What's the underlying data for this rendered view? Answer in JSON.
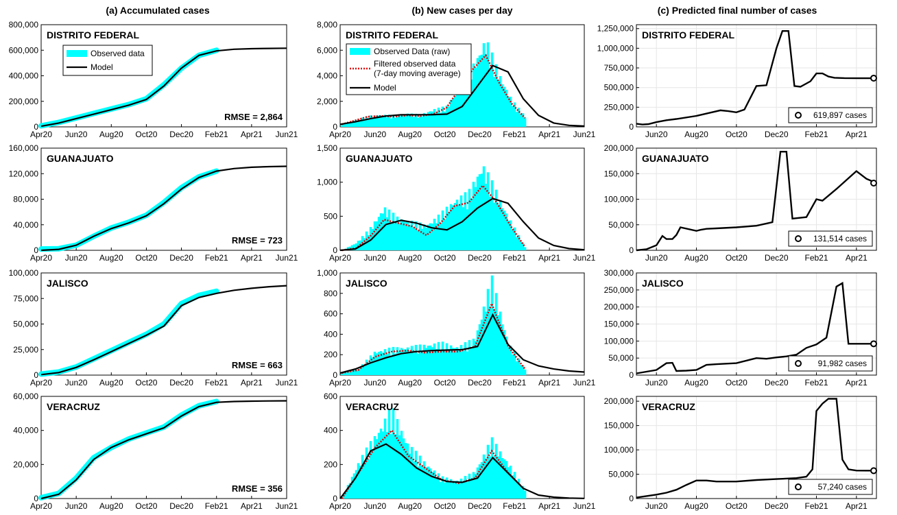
{
  "figure": {
    "columns": [
      {
        "title": "(a) Accumulated cases"
      },
      {
        "title": "(b) New cases per day"
      },
      {
        "title": "(c) Predicted final number of cases"
      }
    ]
  },
  "colors": {
    "observed": "#00ffff",
    "model": "#000000",
    "filtered": "#e00000",
    "grid": "#e6e6e6"
  },
  "legends": {
    "a": [
      "Observed data",
      "Model"
    ],
    "b": [
      "Observed Data (raw)",
      "Filtered observed data",
      "(7-day moving average)",
      "Model"
    ]
  },
  "chart_data": [
    {
      "type": "line",
      "column": "a",
      "state": "DISTRITO FEDERAL",
      "rmse": "RMSE = 2,864",
      "x_ticks": [
        "Apr20",
        "Jun20",
        "Aug20",
        "Oct20",
        "Dec20",
        "Feb21",
        "Apr21",
        "Jun21"
      ],
      "y_ticks": [
        "0",
        "200,000",
        "400,000",
        "600,000",
        "800,000"
      ],
      "ylim": [
        0,
        800000
      ],
      "series": [
        {
          "name": "Observed data",
          "x": [
            0,
            1,
            2,
            3,
            4,
            5,
            6,
            7,
            8,
            9,
            10,
            11
          ],
          "y": [
            8000,
            35000,
            70000,
            105000,
            140000,
            175000,
            220000,
            330000,
            460000,
            560000,
            600000,
            null
          ]
        },
        {
          "name": "Model",
          "x": [
            0,
            1,
            2,
            3,
            4,
            5,
            6,
            7,
            8,
            9,
            10,
            11,
            12,
            13,
            14
          ],
          "y": [
            5000,
            30000,
            65000,
            100000,
            135000,
            170000,
            215000,
            320000,
            460000,
            560000,
            595000,
            608000,
            612000,
            614000,
            616000
          ]
        }
      ]
    },
    {
      "type": "bar+line",
      "column": "b",
      "state": "DISTRITO FEDERAL",
      "x_ticks": [
        "Apr20",
        "Jun20",
        "Aug20",
        "Oct20",
        "Dec20",
        "Feb21",
        "Apr21",
        "Jun21"
      ],
      "y_ticks": [
        "0",
        "2,000",
        "4,000",
        "6,000",
        "8,000"
      ],
      "ylim": [
        0,
        8000
      ],
      "raw": [
        200,
        500,
        800,
        900,
        850,
        1000,
        900,
        1300,
        1500,
        3000,
        4500,
        6500,
        4000,
        2000,
        800
      ],
      "filtered": [
        200,
        500,
        800,
        850,
        800,
        900,
        850,
        1000,
        1500,
        3000,
        4500,
        5600,
        3500,
        1800,
        700
      ],
      "model": [
        200,
        400,
        650,
        850,
        950,
        950,
        950,
        1000,
        1600,
        3200,
        4800,
        4300,
        2200,
        900,
        300,
        120,
        60
      ]
    },
    {
      "type": "line",
      "column": "c",
      "state": "DISTRITO FEDERAL",
      "label": "619,897 cases",
      "x_ticks": [
        "Jun20",
        "Aug20",
        "Oct20",
        "Dec20",
        "Feb21",
        "Apr21"
      ],
      "y_ticks": [
        "0",
        "250,000",
        "500,000",
        "750,000",
        "1,000,000",
        "1,250,000"
      ],
      "ylim": [
        0,
        1300000
      ],
      "final": 619897,
      "x": [
        0,
        0.3,
        0.6,
        1,
        1.5,
        2,
        3,
        3.6,
        4.2,
        4.6,
        5,
        5.4,
        6,
        6.5,
        7,
        7.3,
        7.6,
        7.9,
        8.2,
        8.7,
        9,
        9.3,
        9.6,
        9.9,
        10.4,
        11,
        12
      ],
      "y": [
        40000,
        30000,
        35000,
        60000,
        85000,
        100000,
        140000,
        175000,
        210000,
        200000,
        185000,
        220000,
        520000,
        530000,
        1000000,
        1220000,
        1220000,
        520000,
        510000,
        580000,
        680000,
        680000,
        640000,
        625000,
        620000,
        619000,
        619897
      ]
    },
    {
      "type": "line",
      "column": "a",
      "state": "GUANAJUATO",
      "rmse": "RMSE = 723",
      "x_ticks": [
        "Apr20",
        "Jun20",
        "Aug20",
        "Oct20",
        "Dec20",
        "Feb21",
        "Apr21",
        "Jun21"
      ],
      "y_ticks": [
        "0",
        "40,000",
        "80,000",
        "120,000",
        "160,000"
      ],
      "ylim": [
        0,
        160000
      ],
      "series": [
        {
          "name": "Observed data",
          "x": [
            0,
            1,
            2,
            3,
            4,
            5,
            6,
            7,
            8,
            9,
            10
          ],
          "y": [
            2000,
            2500,
            8000,
            22000,
            35000,
            44000,
            55000,
            75000,
            98000,
            115000,
            124000
          ]
        },
        {
          "name": "Model",
          "x": [
            0,
            1,
            2,
            3,
            4,
            5,
            6,
            7,
            8,
            9,
            10,
            11,
            12,
            13,
            14
          ],
          "y": [
            0,
            1500,
            8000,
            22000,
            34000,
            43000,
            54000,
            73000,
            96000,
            114000,
            124000,
            128000,
            130000,
            131000,
            131500
          ]
        }
      ]
    },
    {
      "type": "bar+line",
      "column": "b",
      "state": "GUANAJUATO",
      "x_ticks": [
        "Apr20",
        "Jun20",
        "Aug20",
        "Oct20",
        "Dec20",
        "Feb21",
        "Apr21",
        "Jun21"
      ],
      "y_ticks": [
        "0",
        "500",
        "1,000",
        "1,500"
      ],
      "ylim": [
        0,
        1500
      ],
      "raw": [
        0,
        100,
        300,
        600,
        450,
        400,
        350,
        500,
        700,
        800,
        1200,
        800,
        400,
        50
      ],
      "filtered": [
        0,
        30,
        200,
        450,
        400,
        350,
        220,
        400,
        650,
        700,
        950,
        700,
        350,
        50
      ],
      "model": [
        0,
        20,
        150,
        380,
        440,
        400,
        330,
        300,
        420,
        620,
        760,
        690,
        420,
        180,
        70,
        25,
        8
      ]
    },
    {
      "type": "line",
      "column": "c",
      "state": "GUANAJUATO",
      "label": "131,514 cases",
      "x_ticks": [
        "Jun20",
        "Aug20",
        "Oct20",
        "Dec20",
        "Feb21",
        "Apr21"
      ],
      "y_ticks": [
        "0",
        "50,000",
        "100,000",
        "150,000",
        "200,000"
      ],
      "ylim": [
        0,
        200000
      ],
      "final": 131514,
      "x": [
        0,
        0.5,
        1,
        1.3,
        1.5,
        1.8,
        2,
        2.2,
        3,
        3.2,
        3.5,
        4,
        5,
        6,
        6.8,
        7.2,
        7.5,
        7.8,
        8.5,
        9,
        9.3,
        10,
        11,
        11.5,
        12
      ],
      "y": [
        0,
        2000,
        10000,
        28000,
        22000,
        22000,
        30000,
        45000,
        38000,
        40000,
        42000,
        43000,
        45000,
        48000,
        55000,
        193000,
        193000,
        62000,
        65000,
        100000,
        97000,
        120000,
        155000,
        140000,
        131514
      ]
    },
    {
      "type": "line",
      "column": "a",
      "state": "JALISCO",
      "rmse": "RMSE = 663",
      "x_ticks": [
        "Apr20",
        "Jun20",
        "Aug20",
        "Oct20",
        "Dec20",
        "Feb21",
        "Apr21",
        "Jun21"
      ],
      "y_ticks": [
        "0",
        "25,000",
        "50,000",
        "75,000",
        "100,000"
      ],
      "ylim": [
        0,
        100000
      ],
      "series": [
        {
          "name": "Observed data",
          "x": [
            0,
            1,
            2,
            3,
            4,
            5,
            6,
            7,
            8,
            9,
            10
          ],
          "y": [
            1000,
            3000,
            8000,
            16000,
            24000,
            32000,
            40000,
            50000,
            70000,
            78000,
            82000
          ]
        },
        {
          "name": "Model",
          "x": [
            0,
            1,
            2,
            3,
            4,
            5,
            6,
            7,
            8,
            9,
            10,
            11,
            12,
            13,
            14
          ],
          "y": [
            500,
            2500,
            7500,
            15000,
            23000,
            31000,
            39000,
            48000,
            68000,
            76000,
            80000,
            83000,
            85000,
            86500,
            87500
          ]
        }
      ]
    },
    {
      "type": "bar+line",
      "column": "b",
      "state": "JALISCO",
      "x_ticks": [
        "Apr20",
        "Jun20",
        "Aug20",
        "Oct20",
        "Dec20",
        "Feb21",
        "Apr21",
        "Jun21"
      ],
      "y_ticks": [
        "0",
        "200",
        "400",
        "600",
        "800",
        "1,000"
      ],
      "ylim": [
        0,
        1000
      ],
      "raw": [
        20,
        60,
        220,
        250,
        260,
        280,
        300,
        260,
        340,
        900,
        300,
        60
      ],
      "filtered": [
        20,
        50,
        180,
        230,
        240,
        220,
        230,
        230,
        280,
        700,
        280,
        60
      ],
      "model": [
        20,
        60,
        120,
        170,
        210,
        230,
        240,
        245,
        250,
        280,
        590,
        300,
        150,
        90,
        60,
        40,
        30
      ]
    },
    {
      "type": "line",
      "column": "c",
      "state": "JALISCO",
      "label": "91,982 cases",
      "x_ticks": [
        "Jun20",
        "Aug20",
        "Oct20",
        "Dec20",
        "Feb21",
        "Apr21"
      ],
      "y_ticks": [
        "0",
        "50,000",
        "100,000",
        "150,000",
        "200,000",
        "250,000",
        "300,000"
      ],
      "ylim": [
        0,
        300000
      ],
      "final": 91982,
      "x": [
        0,
        1,
        1.5,
        1.8,
        2,
        2.5,
        3,
        3.5,
        4,
        5,
        6,
        6.5,
        7,
        7.5,
        8,
        8.5,
        9,
        9.5,
        10,
        10.3,
        10.6,
        11,
        11.5,
        12
      ],
      "y": [
        5000,
        15000,
        35000,
        36000,
        12000,
        13000,
        15000,
        30000,
        32000,
        35000,
        50000,
        48000,
        52000,
        55000,
        60000,
        80000,
        90000,
        110000,
        260000,
        270000,
        92000,
        92000,
        92000,
        91982
      ]
    },
    {
      "type": "line",
      "column": "a",
      "state": "VERACRUZ",
      "rmse": "RMSE = 356",
      "x_ticks": [
        "Apr20",
        "Jun20",
        "Aug20",
        "Oct20",
        "Dec20",
        "Feb21",
        "Apr21",
        "Jun21"
      ],
      "y_ticks": [
        "0",
        "20,000",
        "40,000",
        "60,000"
      ],
      "ylim": [
        0,
        60000
      ],
      "series": [
        {
          "name": "Observed data",
          "x": [
            0,
            1,
            2,
            3,
            4,
            5,
            6,
            7,
            8,
            9,
            10
          ],
          "y": [
            500,
            3000,
            12000,
            24000,
            30000,
            35000,
            38500,
            42000,
            49000,
            54500,
            57000
          ]
        },
        {
          "name": "Model",
          "x": [
            0,
            1,
            2,
            3,
            4,
            5,
            6,
            7,
            8,
            9,
            10,
            11,
            12,
            13,
            14
          ],
          "y": [
            0,
            2500,
            11000,
            23000,
            30000,
            34500,
            38000,
            41500,
            48500,
            54000,
            56500,
            57000,
            57200,
            57300,
            57400
          ]
        }
      ]
    },
    {
      "type": "bar+line",
      "column": "b",
      "state": "VERACRUZ",
      "x_ticks": [
        "Apr20",
        "Jun20",
        "Aug20",
        "Oct20",
        "Dec20",
        "Feb21",
        "Apr21",
        "Jun21"
      ],
      "y_ticks": [
        "0",
        "200",
        "400",
        "600"
      ],
      "ylim": [
        0,
        600
      ],
      "raw": [
        0,
        200,
        350,
        500,
        300,
        200,
        120,
        100,
        150,
        330,
        200,
        50
      ],
      "filtered": [
        0,
        150,
        300,
        400,
        250,
        180,
        110,
        90,
        120,
        280,
        150,
        50
      ],
      "model": [
        0,
        120,
        280,
        320,
        260,
        180,
        130,
        100,
        95,
        120,
        240,
        150,
        60,
        20,
        8,
        3,
        1
      ]
    },
    {
      "type": "line",
      "column": "c",
      "state": "VERACRUZ",
      "label": "57,240 cases",
      "x_ticks": [
        "Jun20",
        "Aug20",
        "Oct20",
        "Dec20",
        "Feb21",
        "Apr21"
      ],
      "y_ticks": [
        "0",
        "50,000",
        "100,000",
        "150,000",
        "200,000"
      ],
      "ylim": [
        0,
        210000
      ],
      "final": 57240,
      "x": [
        0,
        1,
        1.5,
        2,
        2.5,
        3,
        3.5,
        4,
        5,
        6,
        7,
        8,
        8.5,
        8.8,
        9,
        9.3,
        9.6,
        10,
        10.3,
        10.6,
        11,
        11.5,
        12
      ],
      "y": [
        2000,
        8000,
        12000,
        18000,
        28000,
        37000,
        37000,
        35000,
        35000,
        38000,
        40000,
        42000,
        45000,
        60000,
        180000,
        195000,
        205000,
        205000,
        80000,
        60000,
        57500,
        57300,
        57240
      ]
    }
  ]
}
